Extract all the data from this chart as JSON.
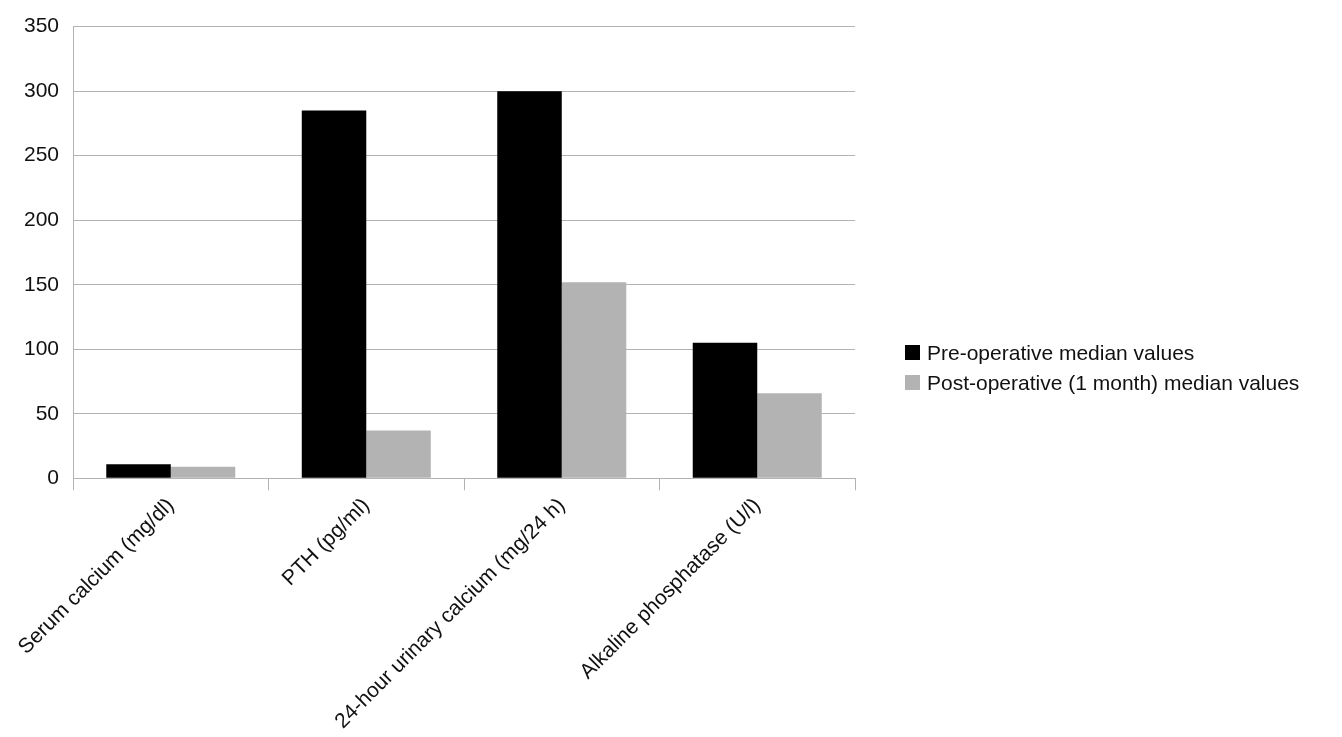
{
  "chart_data": {
    "type": "bar",
    "categories": [
      "Serum calcium (mg/dl)",
      "PTH (pg/ml)",
      "24-hour urinary calcium (mg/24 h)",
      "Alkaline phosphatase (U/l)"
    ],
    "series": [
      {
        "name": "Pre-operative median values",
        "color": "#000000",
        "values": [
          11,
          285,
          300,
          105
        ]
      },
      {
        "name": "Post-operative (1 month) median values",
        "color": "#b3b3b3",
        "values": [
          9,
          37,
          152,
          66
        ]
      }
    ],
    "ylim": [
      0,
      350
    ],
    "yticks": [
      0,
      50,
      100,
      150,
      200,
      250,
      300,
      350
    ],
    "grid": "y",
    "legend": "right"
  }
}
